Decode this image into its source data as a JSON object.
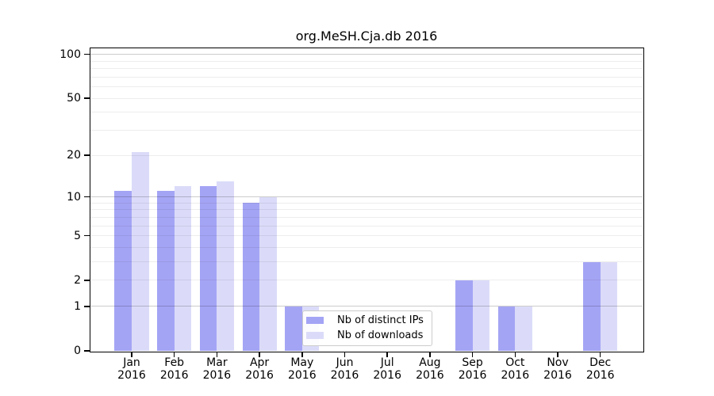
{
  "chart_data": {
    "type": "bar",
    "title": "org.MeSH.Cja.db 2016",
    "year": "2016",
    "categories": [
      "Jan",
      "Feb",
      "Mar",
      "Apr",
      "May",
      "Jun",
      "Jul",
      "Aug",
      "Sep",
      "Oct",
      "Nov",
      "Dec"
    ],
    "series": [
      {
        "name": "Nb of distinct IPs",
        "color": "#a4a4f5",
        "values": [
          11,
          11,
          12,
          9,
          1,
          0,
          0,
          0,
          2,
          1,
          0,
          3
        ]
      },
      {
        "name": "Nb of downloads",
        "color": "#dbdbf9",
        "values": [
          21,
          12,
          13,
          10,
          1,
          0,
          0,
          0,
          2,
          1,
          0,
          3
        ]
      }
    ],
    "yscale": "log1p",
    "ylim": [
      0,
      110
    ],
    "yticks": [
      0,
      1,
      2,
      5,
      10,
      20,
      50,
      100
    ],
    "minor_gridlines": [
      2,
      3,
      4,
      5,
      6,
      7,
      8,
      9,
      20,
      30,
      40,
      50,
      60,
      70,
      80,
      90
    ],
    "major_gridlines": [
      1,
      10,
      100
    ],
    "grid": true,
    "legend_position": "bottom-center-left",
    "xlabel": "",
    "ylabel": ""
  }
}
